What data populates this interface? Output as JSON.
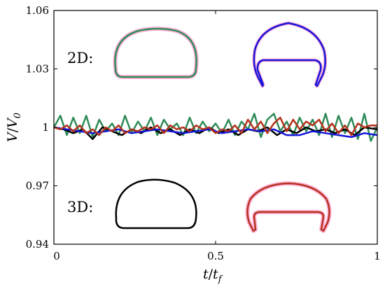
{
  "chart_data": {
    "type": "line",
    "title": "",
    "xlabel": "t/t_f",
    "ylabel": "V/V_0",
    "xlabel_parts": {
      "main": "t",
      "slash": "/",
      "main2": "t",
      "sub": "f"
    },
    "ylabel_parts": {
      "main": "V",
      "slash": "/",
      "main2": "V",
      "sub": "0"
    },
    "xlim": [
      0,
      1
    ],
    "ylim": [
      0.94,
      1.06
    ],
    "x_ticks": [
      0,
      0.5,
      1
    ],
    "x_tick_labels": [
      "0",
      "0.5",
      "1"
    ],
    "y_ticks": [
      0.94,
      0.97,
      1.0,
      1.03,
      1.06
    ],
    "y_tick_labels": [
      "0.94",
      "0.97",
      "1",
      "1.03",
      "1.06"
    ],
    "grid": false,
    "legend": "none",
    "panel_labels": [
      "2D:",
      "3D:"
    ],
    "series": [
      {
        "color": "#2e8b57",
        "x": [
          0.0,
          0.02,
          0.04,
          0.06,
          0.08,
          0.1,
          0.12,
          0.14,
          0.16,
          0.18,
          0.2,
          0.22,
          0.24,
          0.26,
          0.28,
          0.3,
          0.32,
          0.34,
          0.36,
          0.38,
          0.4,
          0.42,
          0.44,
          0.46,
          0.48,
          0.5,
          0.52,
          0.54,
          0.56,
          0.58,
          0.6,
          0.62,
          0.64,
          0.66,
          0.68,
          0.7,
          0.72,
          0.74,
          0.76,
          0.78,
          0.8,
          0.82,
          0.84,
          0.86,
          0.88,
          0.9,
          0.92,
          0.94,
          0.96,
          0.98,
          1.0
        ],
        "y": [
          1.0,
          1.006,
          0.996,
          1.005,
          0.997,
          1.006,
          0.995,
          1.004,
          0.998,
          1.002,
          0.996,
          1.006,
          0.997,
          1.003,
          0.998,
          1.005,
          0.996,
          1.004,
          0.999,
          1.002,
          0.996,
          1.005,
          0.997,
          1.003,
          0.998,
          1.002,
          0.997,
          1.004,
          0.996,
          1.003,
          0.999,
          1.007,
          0.995,
          1.004,
          1.007,
          0.998,
          1.003,
          0.996,
          1.005,
          0.998,
          1.004,
          0.996,
          1.007,
          0.995,
          1.006,
          0.997,
          1.005,
          0.994,
          1.007,
          0.993,
          1.0
        ]
      },
      {
        "color": "#000000",
        "x": [
          0.0,
          0.03,
          0.06,
          0.09,
          0.12,
          0.15,
          0.18,
          0.21,
          0.24,
          0.27,
          0.3,
          0.33,
          0.36,
          0.39,
          0.42,
          0.45,
          0.48,
          0.51,
          0.54,
          0.57,
          0.6,
          0.63,
          0.66,
          0.69,
          0.72,
          0.75,
          0.78,
          0.81,
          0.84,
          0.87,
          0.9,
          0.93,
          0.96,
          1.0
        ],
        "y": [
          1.0,
          0.999,
          0.997,
          0.999,
          0.994,
          1.0,
          0.998,
          0.996,
          0.999,
          0.997,
          1.0,
          0.997,
          0.999,
          0.996,
          0.999,
          0.997,
          1.0,
          0.997,
          0.999,
          0.996,
          0.999,
          0.998,
          1.0,
          0.996,
          0.999,
          0.997,
          1.0,
          0.998,
          0.999,
          0.997,
          0.999,
          0.996,
          1.0,
          0.999
        ]
      },
      {
        "color": "#1515d9",
        "x": [
          0.0,
          0.04,
          0.08,
          0.12,
          0.16,
          0.2,
          0.24,
          0.28,
          0.32,
          0.36,
          0.4,
          0.44,
          0.48,
          0.52,
          0.56,
          0.6,
          0.64,
          0.68,
          0.72,
          0.76,
          0.8,
          0.84,
          0.88,
          0.92,
          0.96,
          1.0
        ],
        "y": [
          1.0,
          0.999,
          0.998,
          0.997,
          0.998,
          0.999,
          0.997,
          0.998,
          0.999,
          0.998,
          0.997,
          0.998,
          0.999,
          0.997,
          0.998,
          0.999,
          0.998,
          0.999,
          0.996,
          0.996,
          0.998,
          0.997,
          0.996,
          0.995,
          0.997,
          0.996
        ]
      },
      {
        "color": "#b5321d",
        "x": [
          0.0,
          0.02,
          0.04,
          0.06,
          0.08,
          0.1,
          0.12,
          0.14,
          0.16,
          0.18,
          0.2,
          0.22,
          0.24,
          0.26,
          0.28,
          0.3,
          0.32,
          0.34,
          0.36,
          0.38,
          0.4,
          0.42,
          0.44,
          0.46,
          0.48,
          0.5,
          0.52,
          0.54,
          0.56,
          0.58,
          0.6,
          0.62,
          0.64,
          0.66,
          0.68,
          0.7,
          0.72,
          0.74,
          0.76,
          0.78,
          0.8,
          0.82,
          0.84,
          0.86,
          0.88,
          0.9,
          0.92,
          0.94,
          0.96,
          0.98,
          1.0
        ],
        "y": [
          1.0,
          0.999,
          1.001,
          0.998,
          1.001,
          0.997,
          0.999,
          0.996,
          1.0,
          0.998,
          1.001,
          0.997,
          0.999,
          0.998,
          1.0,
          0.999,
          1.001,
          0.997,
          1.001,
          0.999,
          1.0,
          0.998,
          1.001,
          0.999,
          1.0,
          0.997,
          0.999,
          0.998,
          1.001,
          0.997,
          1.004,
          0.999,
          1.003,
          0.997,
          1.002,
          1.005,
          0.998,
          1.004,
          0.999,
          1.003,
          1.001,
          1.004,
          0.998,
          1.002,
          0.997,
          1.001,
          0.996,
          1.002,
          1.0,
          1.001,
          1.001
        ]
      }
    ]
  }
}
